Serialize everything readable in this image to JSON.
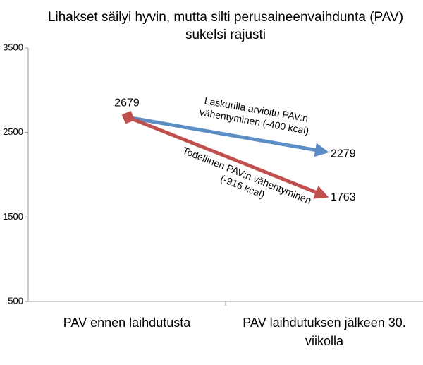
{
  "chart_data": {
    "type": "line",
    "title": "Lihakset säilyi hyvin, mutta silti perusaineenvaihdunta (PAV) sukelsi rajusti",
    "categories": [
      "PAV ennen laihdutusta",
      "PAV laihdutuksen jälkeen 30. viikolla"
    ],
    "series": [
      {
        "color": "#5b8ec4",
        "values": [
          2679,
          2279
        ],
        "annotation": [
          "Laskurilla arvioitu PAV:n",
          "vähentyminen (-400 kcal)"
        ]
      },
      {
        "color": "#c0504d",
        "values": [
          2679,
          1763
        ],
        "annotation": [
          "Todellinen PAV:n vähentyminen",
          "(-916 kcal)"
        ]
      }
    ],
    "ylim": [
      500,
      3500
    ],
    "yticks": [
      500,
      1500,
      2500,
      3500
    ],
    "grid": false
  }
}
